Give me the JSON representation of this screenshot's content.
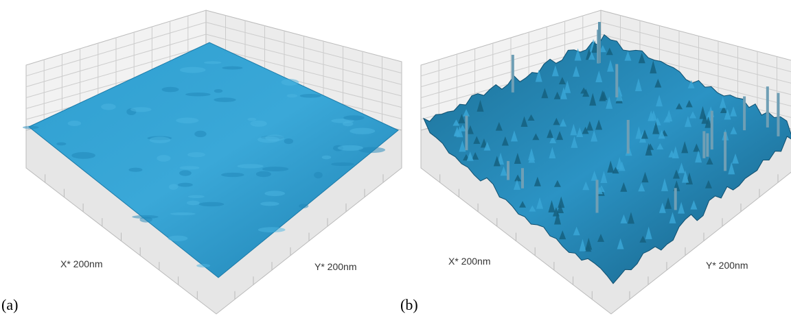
{
  "panels": [
    {
      "tag": "(a)",
      "x_label": "X* 200nm",
      "y_label": "Y* 200nm"
    },
    {
      "tag": "(b)",
      "x_label": "X* 200nm",
      "y_label": "Y* 200nm"
    }
  ]
}
